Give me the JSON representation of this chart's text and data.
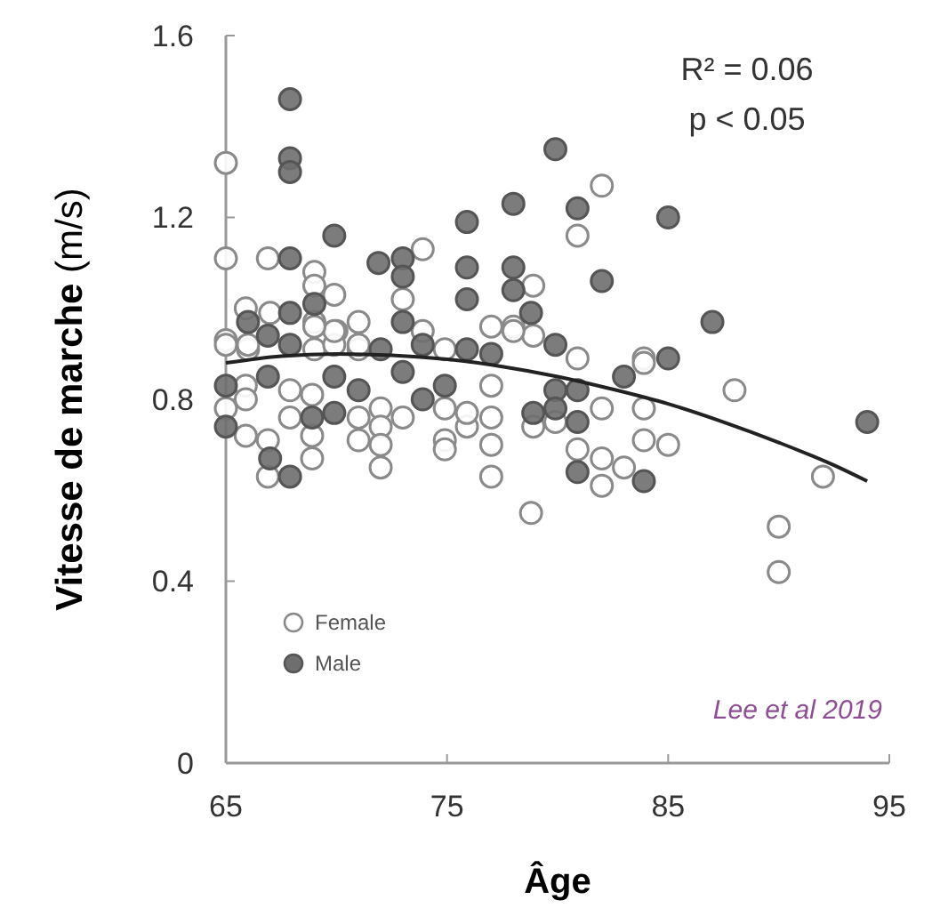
{
  "chart_data": {
    "type": "scatter",
    "xlabel": "Âge",
    "ylabel": "Vitesse de marche (m/s)",
    "xlim": [
      65,
      95
    ],
    "ylim": [
      0,
      1.6
    ],
    "xticks": [
      65,
      75,
      85,
      95
    ],
    "yticks": [
      0,
      0.4,
      0.8,
      1.2,
      1.6
    ],
    "grid": false,
    "legend": "bottom left",
    "marker": "circle",
    "annotations": [
      "R² = 0.06",
      "p < 0.05",
      "Lee et al 2019"
    ],
    "series": [
      {
        "name": "Female",
        "color": "#ffffff",
        "x": [
          65,
          65,
          65,
          66.9,
          69,
          69,
          69.9,
          73.9,
          73,
          65.9,
          67,
          71,
          70,
          69,
          77,
          78,
          66,
          69,
          71,
          74.9,
          82,
          80.9,
          78.9,
          78.9,
          80.9,
          83.9,
          88,
          65,
          66,
          65,
          65.9,
          65.9,
          65.9,
          66.9,
          66.9,
          67.9,
          67.9,
          68.9,
          68.9,
          68.9,
          69.9,
          71,
          69.9,
          69,
          71,
          71,
          72,
          72,
          72,
          72,
          73,
          73.9,
          74.9,
          74.9,
          74.9,
          75.9,
          75.9,
          77,
          77,
          77,
          77,
          78,
          78.8,
          92,
          90,
          90,
          83.9,
          82,
          83.9,
          83.9,
          85,
          80.9,
          82,
          83,
          82,
          78.9,
          79.9
        ],
        "values": [
          1.32,
          1.11,
          0.93,
          1.11,
          1.08,
          1.05,
          1.03,
          1.13,
          1.02,
          1.0,
          0.99,
          0.97,
          0.95,
          0.97,
          0.96,
          0.96,
          0.91,
          0.91,
          0.91,
          0.91,
          1.27,
          1.16,
          1.05,
          0.94,
          0.89,
          0.89,
          0.82,
          0.92,
          0.92,
          0.78,
          0.83,
          0.8,
          0.72,
          0.71,
          0.63,
          0.82,
          0.76,
          0.81,
          0.72,
          0.67,
          0.92,
          0.92,
          0.95,
          0.96,
          0.76,
          0.71,
          0.78,
          0.74,
          0.7,
          0.65,
          0.76,
          0.95,
          0.78,
          0.71,
          0.69,
          0.74,
          0.77,
          0.83,
          0.76,
          0.7,
          0.63,
          0.95,
          0.55,
          0.63,
          0.52,
          0.42,
          0.88,
          0.78,
          0.78,
          0.71,
          0.7,
          0.69,
          0.67,
          0.65,
          0.61,
          0.74,
          0.75
        ]
      },
      {
        "name": "Male",
        "color": "#6e6e6e",
        "x": [
          67.9,
          67.9,
          67.9,
          67.9,
          69.9,
          71.9,
          73,
          73,
          75.9,
          78,
          75.9,
          75.9,
          78,
          78,
          78.8,
          79.9,
          80.9,
          85,
          82,
          87,
          79.9,
          85,
          83,
          94,
          79.9,
          80.9,
          78.9,
          79.9,
          80.9,
          80.9,
          83.9,
          65,
          65,
          67.9,
          66.9,
          67,
          67.9,
          68.9,
          69.9,
          69.9,
          71,
          72,
          73,
          73.9,
          73.9,
          74.9,
          75.9,
          77,
          66,
          66.9,
          67.9,
          69,
          73
        ],
        "values": [
          1.46,
          1.33,
          1.3,
          1.11,
          1.16,
          1.1,
          1.11,
          1.07,
          1.19,
          1.23,
          1.09,
          1.02,
          1.09,
          1.04,
          0.99,
          1.35,
          1.22,
          1.2,
          1.06,
          0.97,
          0.92,
          0.89,
          0.85,
          0.75,
          0.82,
          0.82,
          0.77,
          0.78,
          0.75,
          0.64,
          0.62,
          0.83,
          0.74,
          0.92,
          0.85,
          0.67,
          0.63,
          0.76,
          0.77,
          0.85,
          0.82,
          0.91,
          0.86,
          0.92,
          0.8,
          0.83,
          0.91,
          0.9,
          0.97,
          0.94,
          0.99,
          1.01,
          0.97
        ]
      },
      {
        "type": "line",
        "color": "#222222",
        "marker": "none",
        "x": [
          65,
          67.5,
          70,
          72.5,
          75,
          77.5,
          80,
          82.5,
          85,
          87.5,
          90,
          92.5,
          94
        ],
        "values": [
          0.88,
          0.895,
          0.9,
          0.897,
          0.888,
          0.872,
          0.85,
          0.822,
          0.79,
          0.75,
          0.705,
          0.655,
          0.62
        ]
      }
    ]
  }
}
